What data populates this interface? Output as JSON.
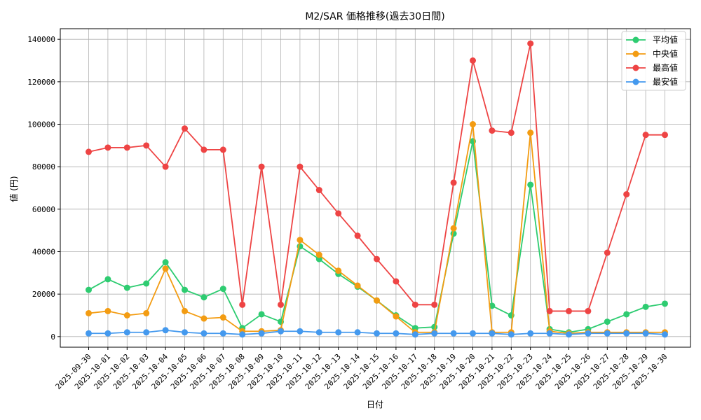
{
  "chart_data": {
    "type": "line",
    "title": "M2/SAR 価格推移(過去30日間)",
    "xlabel": "日付",
    "ylabel": "値 (円)",
    "ylim": [
      -5000,
      145000
    ],
    "yticks": [
      0,
      20000,
      40000,
      60000,
      80000,
      100000,
      120000,
      140000
    ],
    "grid": true,
    "legend_position": "top-right",
    "categories": [
      "2025-09-30",
      "2025-10-01",
      "2025-10-02",
      "2025-10-03",
      "2025-10-04",
      "2025-10-05",
      "2025-10-06",
      "2025-10-07",
      "2025-10-08",
      "2025-10-09",
      "2025-10-10",
      "2025-10-11",
      "2025-10-12",
      "2025-10-13",
      "2025-10-14",
      "2025-10-15",
      "2025-10-16",
      "2025-10-17",
      "2025-10-18",
      "2025-10-19",
      "2025-10-20",
      "2025-10-21",
      "2025-10-22",
      "2025-10-23",
      "2025-10-24",
      "2025-10-25",
      "2025-10-26",
      "2025-10-27",
      "2025-10-28",
      "2025-10-29",
      "2025-10-30"
    ],
    "series": [
      {
        "name": "平均値",
        "color": "#2ecc71",
        "values": [
          22000,
          27000,
          23000,
          25000,
          35000,
          22000,
          18500,
          22500,
          4000,
          10500,
          7000,
          42500,
          36500,
          29500,
          23500,
          17000,
          10000,
          4000,
          4500,
          48500,
          92000,
          14500,
          10000,
          71500,
          3500,
          2000,
          3500,
          7000,
          10500,
          14000,
          15500
        ]
      },
      {
        "name": "中央値",
        "color": "#f39c12",
        "values": [
          11000,
          12000,
          10000,
          11000,
          32000,
          12000,
          8500,
          9000,
          2500,
          2500,
          3000,
          45500,
          38500,
          31000,
          24000,
          17000,
          9500,
          2000,
          2000,
          51000,
          100000,
          2000,
          2000,
          96000,
          2500,
          1500,
          2000,
          2000,
          2000,
          2000,
          2000
        ]
      },
      {
        "name": "最高値",
        "color": "#ee4444",
        "values": [
          87000,
          89000,
          89000,
          90000,
          80000,
          98000,
          88000,
          88000,
          15000,
          80000,
          15000,
          80000,
          69000,
          58000,
          47500,
          36500,
          26000,
          15000,
          15000,
          72500,
          130000,
          97000,
          96000,
          138000,
          12000,
          12000,
          12000,
          39500,
          67000,
          95000,
          95000
        ]
      },
      {
        "name": "最安値",
        "color": "#4499ee",
        "values": [
          1500,
          1500,
          2000,
          2000,
          3000,
          2000,
          1500,
          1500,
          1000,
          1500,
          2500,
          2500,
          2000,
          2000,
          2000,
          1500,
          1500,
          1000,
          1500,
          1500,
          1500,
          1500,
          1000,
          1500,
          1500,
          1000,
          1500,
          1500,
          1500,
          1500,
          1000
        ]
      }
    ]
  }
}
